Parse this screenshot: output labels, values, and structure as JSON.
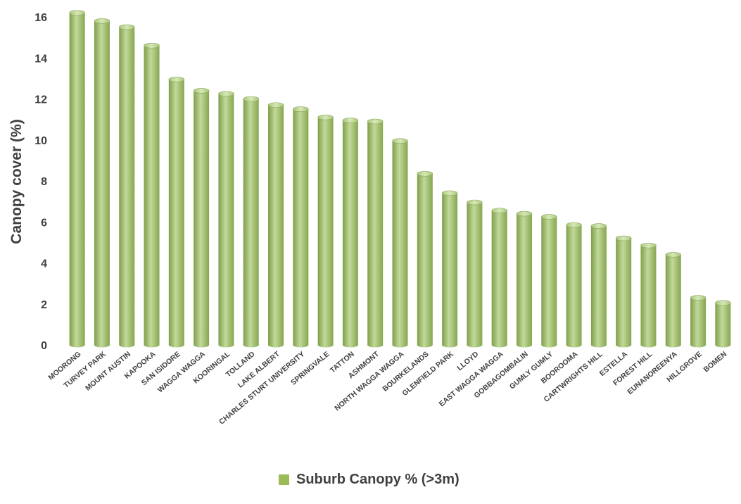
{
  "chart_data": {
    "type": "bar",
    "title": "",
    "xlabel": "",
    "ylabel": "Canopy cover (%)",
    "ylim": [
      0,
      16
    ],
    "yticks": [
      0,
      2,
      4,
      6,
      8,
      10,
      12,
      14,
      16
    ],
    "grid": false,
    "legend_position": "bottom",
    "categories": [
      "MOORONG",
      "TURVEY PARK",
      "MOUNT AUSTIN",
      "KAPOOKA",
      "SAN ISIDORE",
      "WAGGA WAGGA",
      "KOORINGAL",
      "TOLLAND",
      "LAKE ALBERT",
      "CHARLES STURT UNIVERSITY",
      "SPRINGVALE",
      "TATTON",
      "ASHMONT",
      "NORTH WAGGA WAGGA",
      "BOURKELANDS",
      "GLENFIELD PARK",
      "LLOYD",
      "EAST WAGGA WAGGA",
      "GOBBAGOMBALIN",
      "GUMLY GUMLY",
      "BOOROOMA",
      "CARTWRIGHTS HILL",
      "ESTELLA",
      "FOREST HILL",
      "EUNANOREENYA",
      "HILLGROVE",
      "BOMEN"
    ],
    "series": [
      {
        "name": "Suburb Canopy % (>3m)",
        "color": "#9BBB59",
        "values": [
          16.2,
          15.8,
          15.5,
          14.6,
          12.95,
          12.4,
          12.25,
          12.0,
          11.7,
          11.5,
          11.1,
          10.95,
          10.9,
          9.95,
          8.35,
          7.4,
          6.95,
          6.55,
          6.4,
          6.25,
          5.85,
          5.8,
          5.2,
          4.85,
          4.4,
          2.3,
          2.05
        ]
      }
    ]
  }
}
